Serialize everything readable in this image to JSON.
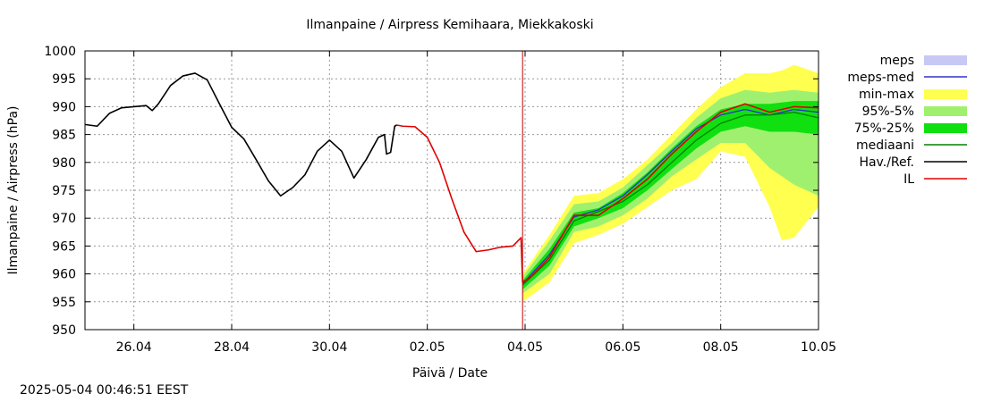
{
  "chart_data": {
    "type": "line",
    "title": "Ilmanpaine / Airpress Kemihaara, Miekkakoski",
    "xlabel": "Päivä / Date",
    "ylabel": "Ilmanpaine / Airpress (hPa)",
    "ylim": [
      950,
      1000
    ],
    "xlim": [
      "2025-04-25",
      "2025-05-10"
    ],
    "yticks": [
      950,
      955,
      960,
      965,
      970,
      975,
      980,
      985,
      990,
      995,
      1000
    ],
    "xticks": [
      "26.04",
      "28.04",
      "30.04",
      "02.05",
      "04.05",
      "06.05",
      "08.05",
      "10.05"
    ],
    "grid": true,
    "legend_position": "right",
    "now_marker": "2025-05-03 22:46",
    "colors": {
      "meps": "#c8c8f5",
      "meps_med": "#3030c8",
      "min_max": "#ffff50",
      "p95_5": "#a0f070",
      "p75_25": "#10e010",
      "mediaani": "#008000",
      "hav_ref": "#000000",
      "il": "#e00000",
      "now_line": "#c00000"
    },
    "legend": [
      {
        "key": "meps",
        "label": "meps",
        "style": "band"
      },
      {
        "key": "meps_med",
        "label": "meps-med",
        "style": "line"
      },
      {
        "key": "min_max",
        "label": "min-max",
        "style": "band"
      },
      {
        "key": "p95_5",
        "label": "95%-5%",
        "style": "band"
      },
      {
        "key": "p75_25",
        "label": "75%-25%",
        "style": "band"
      },
      {
        "key": "mediaani",
        "label": "mediaani",
        "style": "line"
      },
      {
        "key": "hav_ref",
        "label": "Hav./Ref.",
        "style": "line"
      },
      {
        "key": "il",
        "label": "IL",
        "style": "line"
      }
    ],
    "series": [
      {
        "name": "Hav./Ref.",
        "key": "hav_ref",
        "x": [
          "2025-04-25 00:00",
          "2025-04-25 06:00",
          "2025-04-25 12:00",
          "2025-04-25 18:00",
          "2025-04-26 00:00",
          "2025-04-26 06:00",
          "2025-04-26 09:00",
          "2025-04-26 12:00",
          "2025-04-26 18:00",
          "2025-04-27 00:00",
          "2025-04-27 06:00",
          "2025-04-27 12:00",
          "2025-04-27 18:00",
          "2025-04-28 00:00",
          "2025-04-28 06:00",
          "2025-04-28 12:00",
          "2025-04-28 18:00",
          "2025-04-29 00:00",
          "2025-04-29 06:00",
          "2025-04-29 12:00",
          "2025-04-29 18:00",
          "2025-04-30 00:00",
          "2025-04-30 06:00",
          "2025-04-30 12:00",
          "2025-04-30 18:00",
          "2025-05-01 00:00",
          "2025-05-01 03:00",
          "2025-05-01 04:00",
          "2025-05-01 06:00",
          "2025-05-01 08:00",
          "2025-05-01 09:00"
        ],
        "values": [
          986.8,
          986.5,
          988.8,
          989.8,
          990.0,
          990.2,
          989.3,
          990.5,
          993.8,
          995.5,
          996.0,
          994.8,
          990.5,
          986.3,
          984.2,
          980.5,
          976.7,
          974.0,
          975.5,
          977.8,
          982.0,
          984.0,
          982.0,
          977.2,
          980.5,
          984.5,
          985.0,
          981.5,
          981.8,
          986.5,
          986.7
        ]
      },
      {
        "name": "IL",
        "key": "il",
        "x": [
          "2025-05-01 09:00",
          "2025-05-01 12:00",
          "2025-05-01 18:00",
          "2025-05-02 00:00",
          "2025-05-02 06:00",
          "2025-05-02 12:00",
          "2025-05-02 18:00",
          "2025-05-03 00:00",
          "2025-05-03 06:00",
          "2025-05-03 12:00",
          "2025-05-03 18:00",
          "2025-05-03 22:00",
          "2025-05-03 22:46",
          "2025-05-04 03:00",
          "2025-05-04 12:00",
          "2025-05-05 00:00",
          "2025-05-05 12:00",
          "2025-05-06 00:00",
          "2025-05-06 12:00",
          "2025-05-07 00:00",
          "2025-05-07 12:00",
          "2025-05-08 00:00",
          "2025-05-08 12:00",
          "2025-05-09 00:00",
          "2025-05-09 12:00",
          "2025-05-10 00:00"
        ],
        "values": [
          986.7,
          986.5,
          986.4,
          984.5,
          980.0,
          973.5,
          967.5,
          964.0,
          964.3,
          964.8,
          965.0,
          966.5,
          958.5,
          959.5,
          963.0,
          970.5,
          970.5,
          973.5,
          977.0,
          981.5,
          985.5,
          989.0,
          990.5,
          989.0,
          990.0,
          989.8
        ]
      },
      {
        "name": "mediaani",
        "key": "mediaani",
        "x": [
          "2025-05-03 22:46",
          "2025-05-04 12:00",
          "2025-05-05 00:00",
          "2025-05-05 12:00",
          "2025-05-06 00:00",
          "2025-05-06 12:00",
          "2025-05-07 00:00",
          "2025-05-07 12:00",
          "2025-05-08 00:00",
          "2025-05-08 12:00",
          "2025-05-09 00:00",
          "2025-05-09 12:00",
          "2025-05-10 00:00"
        ],
        "values": [
          958.0,
          962.5,
          969.5,
          971.2,
          973.0,
          976.0,
          980.0,
          984.0,
          987.0,
          988.5,
          988.5,
          989.0,
          988.0
        ]
      },
      {
        "name": "meps-med",
        "key": "meps_med",
        "x": [
          "2025-05-03 22:46",
          "2025-05-04 12:00",
          "2025-05-05 00:00",
          "2025-05-05 12:00",
          "2025-05-06 00:00",
          "2025-05-06 12:00",
          "2025-05-07 00:00",
          "2025-05-07 12:00",
          "2025-05-08 00:00",
          "2025-05-08 12:00",
          "2025-05-09 00:00",
          "2025-05-09 12:00",
          "2025-05-10 00:00"
        ],
        "values": [
          958.2,
          963.5,
          970.2,
          971.5,
          974.0,
          977.8,
          982.0,
          986.0,
          988.5,
          989.5,
          988.5,
          989.5,
          989.0
        ]
      }
    ],
    "bands": [
      {
        "name": "min-max",
        "key": "min_max",
        "x": [
          "2025-05-03 22:46",
          "2025-05-04 12:00",
          "2025-05-05 00:00",
          "2025-05-05 12:00",
          "2025-05-06 00:00",
          "2025-05-06 12:00",
          "2025-05-07 00:00",
          "2025-05-07 12:00",
          "2025-05-08 00:00",
          "2025-05-08 12:00",
          "2025-05-09 00:00",
          "2025-05-09 06:00",
          "2025-05-09 12:00",
          "2025-05-10 00:00"
        ],
        "upper": [
          960.0,
          967.0,
          974.0,
          974.5,
          977.0,
          980.5,
          985.0,
          989.5,
          993.5,
          996.0,
          996.0,
          996.5,
          997.5,
          996.0
        ],
        "lower": [
          955.0,
          958.5,
          965.5,
          967.0,
          969.0,
          972.0,
          975.0,
          977.0,
          982.0,
          981.0,
          972.0,
          966.0,
          966.5,
          972.0
        ]
      },
      {
        "name": "95%-5%",
        "key": "p95_5",
        "x": [
          "2025-05-03 22:46",
          "2025-05-04 12:00",
          "2025-05-05 00:00",
          "2025-05-05 12:00",
          "2025-05-06 00:00",
          "2025-05-06 12:00",
          "2025-05-07 00:00",
          "2025-05-07 12:00",
          "2025-05-08 00:00",
          "2025-05-08 12:00",
          "2025-05-09 00:00",
          "2025-05-09 12:00",
          "2025-05-10 00:00"
        ],
        "upper": [
          959.5,
          966.0,
          972.5,
          973.0,
          975.5,
          979.5,
          983.5,
          988.0,
          991.5,
          993.0,
          992.5,
          993.0,
          992.5
        ],
        "lower": [
          956.5,
          960.0,
          967.5,
          968.5,
          970.5,
          973.5,
          977.5,
          980.5,
          983.5,
          983.5,
          979.0,
          976.0,
          974.0
        ]
      },
      {
        "name": "75%-25%",
        "key": "p75_25",
        "x": [
          "2025-05-03 22:46",
          "2025-05-04 12:00",
          "2025-05-05 00:00",
          "2025-05-05 12:00",
          "2025-05-06 00:00",
          "2025-05-06 12:00",
          "2025-05-07 00:00",
          "2025-05-07 12:00",
          "2025-05-08 00:00",
          "2025-05-08 12:00",
          "2025-05-09 00:00",
          "2025-05-09 12:00",
          "2025-05-10 00:00"
        ],
        "upper": [
          958.8,
          964.5,
          971.0,
          971.8,
          974.5,
          978.2,
          982.5,
          986.5,
          989.5,
          990.5,
          990.5,
          991.0,
          991.0
        ],
        "lower": [
          957.2,
          961.5,
          968.5,
          970.0,
          971.8,
          975.0,
          978.8,
          982.5,
          985.5,
          986.5,
          985.5,
          985.5,
          985.0
        ]
      }
    ]
  },
  "footer": {
    "timestamp": "2025-05-04 00:46:51 EEST"
  }
}
